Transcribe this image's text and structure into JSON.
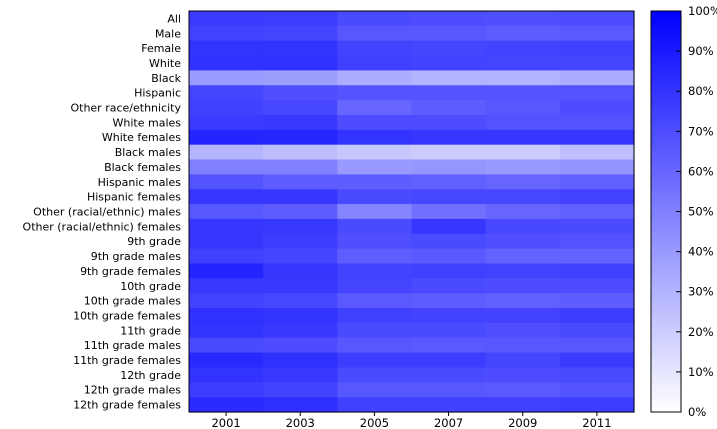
{
  "chart_data": {
    "type": "heatmap",
    "title": "",
    "xlabel": "",
    "ylabel": "",
    "x": [
      "2001",
      "2003",
      "2005",
      "2007",
      "2009",
      "2011"
    ],
    "y": [
      "All",
      "Male",
      "Female",
      "White",
      "Black",
      "Hispanic",
      "Other race/ethnicity",
      "White males",
      "White females",
      "Black males",
      "Black females",
      "Hispanic males",
      "Hispanic females",
      "Other (racial/ethnic) males",
      "Other (racial/ethnic) females",
      "9th grade",
      "9th grade males",
      "9th grade females",
      "10th grade",
      "10th grade males",
      "10th grade females",
      "11th grade",
      "11th grade males",
      "11th grade females",
      "12th grade",
      "12th grade males",
      "12th grade females"
    ],
    "values": [
      [
        77,
        76,
        71,
        70,
        69,
        70
      ],
      [
        74,
        73,
        66,
        66,
        64,
        65
      ],
      [
        80,
        80,
        74,
        73,
        74,
        75
      ],
      [
        81,
        81,
        75,
        74,
        73,
        73
      ],
      [
        39,
        38,
        32,
        30,
        30,
        33
      ],
      [
        73,
        69,
        67,
        67,
        67,
        68
      ],
      [
        75,
        72,
        60,
        64,
        66,
        70
      ],
      [
        77,
        78,
        70,
        70,
        68,
        68
      ],
      [
        86,
        85,
        80,
        79,
        79,
        79
      ],
      [
        29,
        26,
        22,
        20,
        20,
        25
      ],
      [
        50,
        50,
        40,
        41,
        40,
        42
      ],
      [
        67,
        63,
        63,
        62,
        60,
        62
      ],
      [
        79,
        79,
        71,
        72,
        72,
        74
      ],
      [
        66,
        64,
        48,
        56,
        60,
        62
      ],
      [
        79,
        78,
        71,
        79,
        72,
        71
      ],
      [
        79,
        76,
        69,
        71,
        69,
        68
      ],
      [
        75,
        73,
        63,
        65,
        61,
        61
      ],
      [
        86,
        79,
        74,
        75,
        74,
        75
      ],
      [
        78,
        78,
        73,
        71,
        70,
        70
      ],
      [
        74,
        72,
        65,
        64,
        62,
        63
      ],
      [
        81,
        80,
        75,
        74,
        74,
        76
      ],
      [
        80,
        78,
        71,
        71,
        69,
        71
      ],
      [
        71,
        70,
        66,
        65,
        66,
        66
      ],
      [
        84,
        81,
        76,
        76,
        73,
        77
      ],
      [
        80,
        78,
        71,
        71,
        70,
        71
      ],
      [
        76,
        74,
        66,
        66,
        65,
        67
      ],
      [
        83,
        82,
        75,
        75,
        75,
        76
      ]
    ],
    "colorbar": {
      "min": 0,
      "max": 100,
      "ticks": [
        "0%",
        "10%",
        "20%",
        "30%",
        "40%",
        "50%",
        "60%",
        "70%",
        "80%",
        "90%",
        "100%"
      ],
      "low_color": "#ffffff",
      "high_color": "#0000ff"
    },
    "grid": false,
    "legend": "right"
  }
}
